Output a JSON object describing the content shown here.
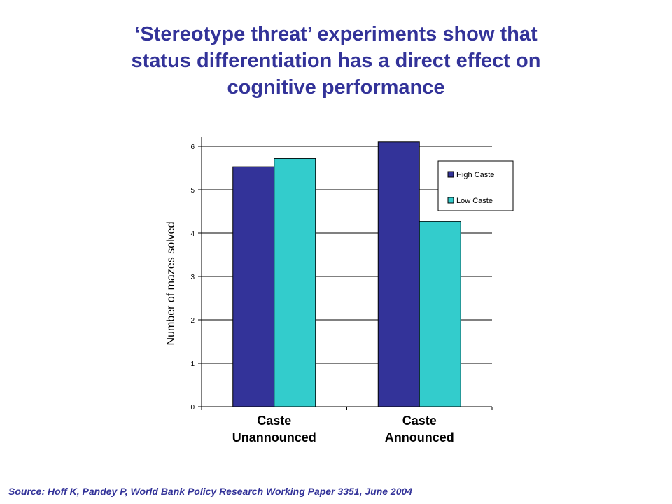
{
  "slide": {
    "title_lines": [
      "‘Stereotype threat’ experiments show that",
      "status differentiation has a direct effect on",
      "cognitive performance"
    ],
    "source": "Source:  Hoff K, Pandey P, World Bank Policy Research Working Paper 3351, June 2004"
  },
  "chart_data": {
    "type": "bar",
    "categories": [
      [
        "Caste",
        "Unannounced"
      ],
      [
        "Caste",
        "Announced"
      ]
    ],
    "series": [
      {
        "name": "High Caste",
        "color": "#333399",
        "values": [
          5.53,
          6.1
        ]
      },
      {
        "name": "Low Caste",
        "color": "#33CCCC",
        "values": [
          5.72,
          4.27
        ]
      }
    ],
    "ylabel": "Number of mazes solved",
    "ylim": [
      0,
      6
    ],
    "yticks": [
      0,
      1,
      2,
      3,
      4,
      5,
      6
    ],
    "grid": true,
    "legend_position": "right"
  }
}
